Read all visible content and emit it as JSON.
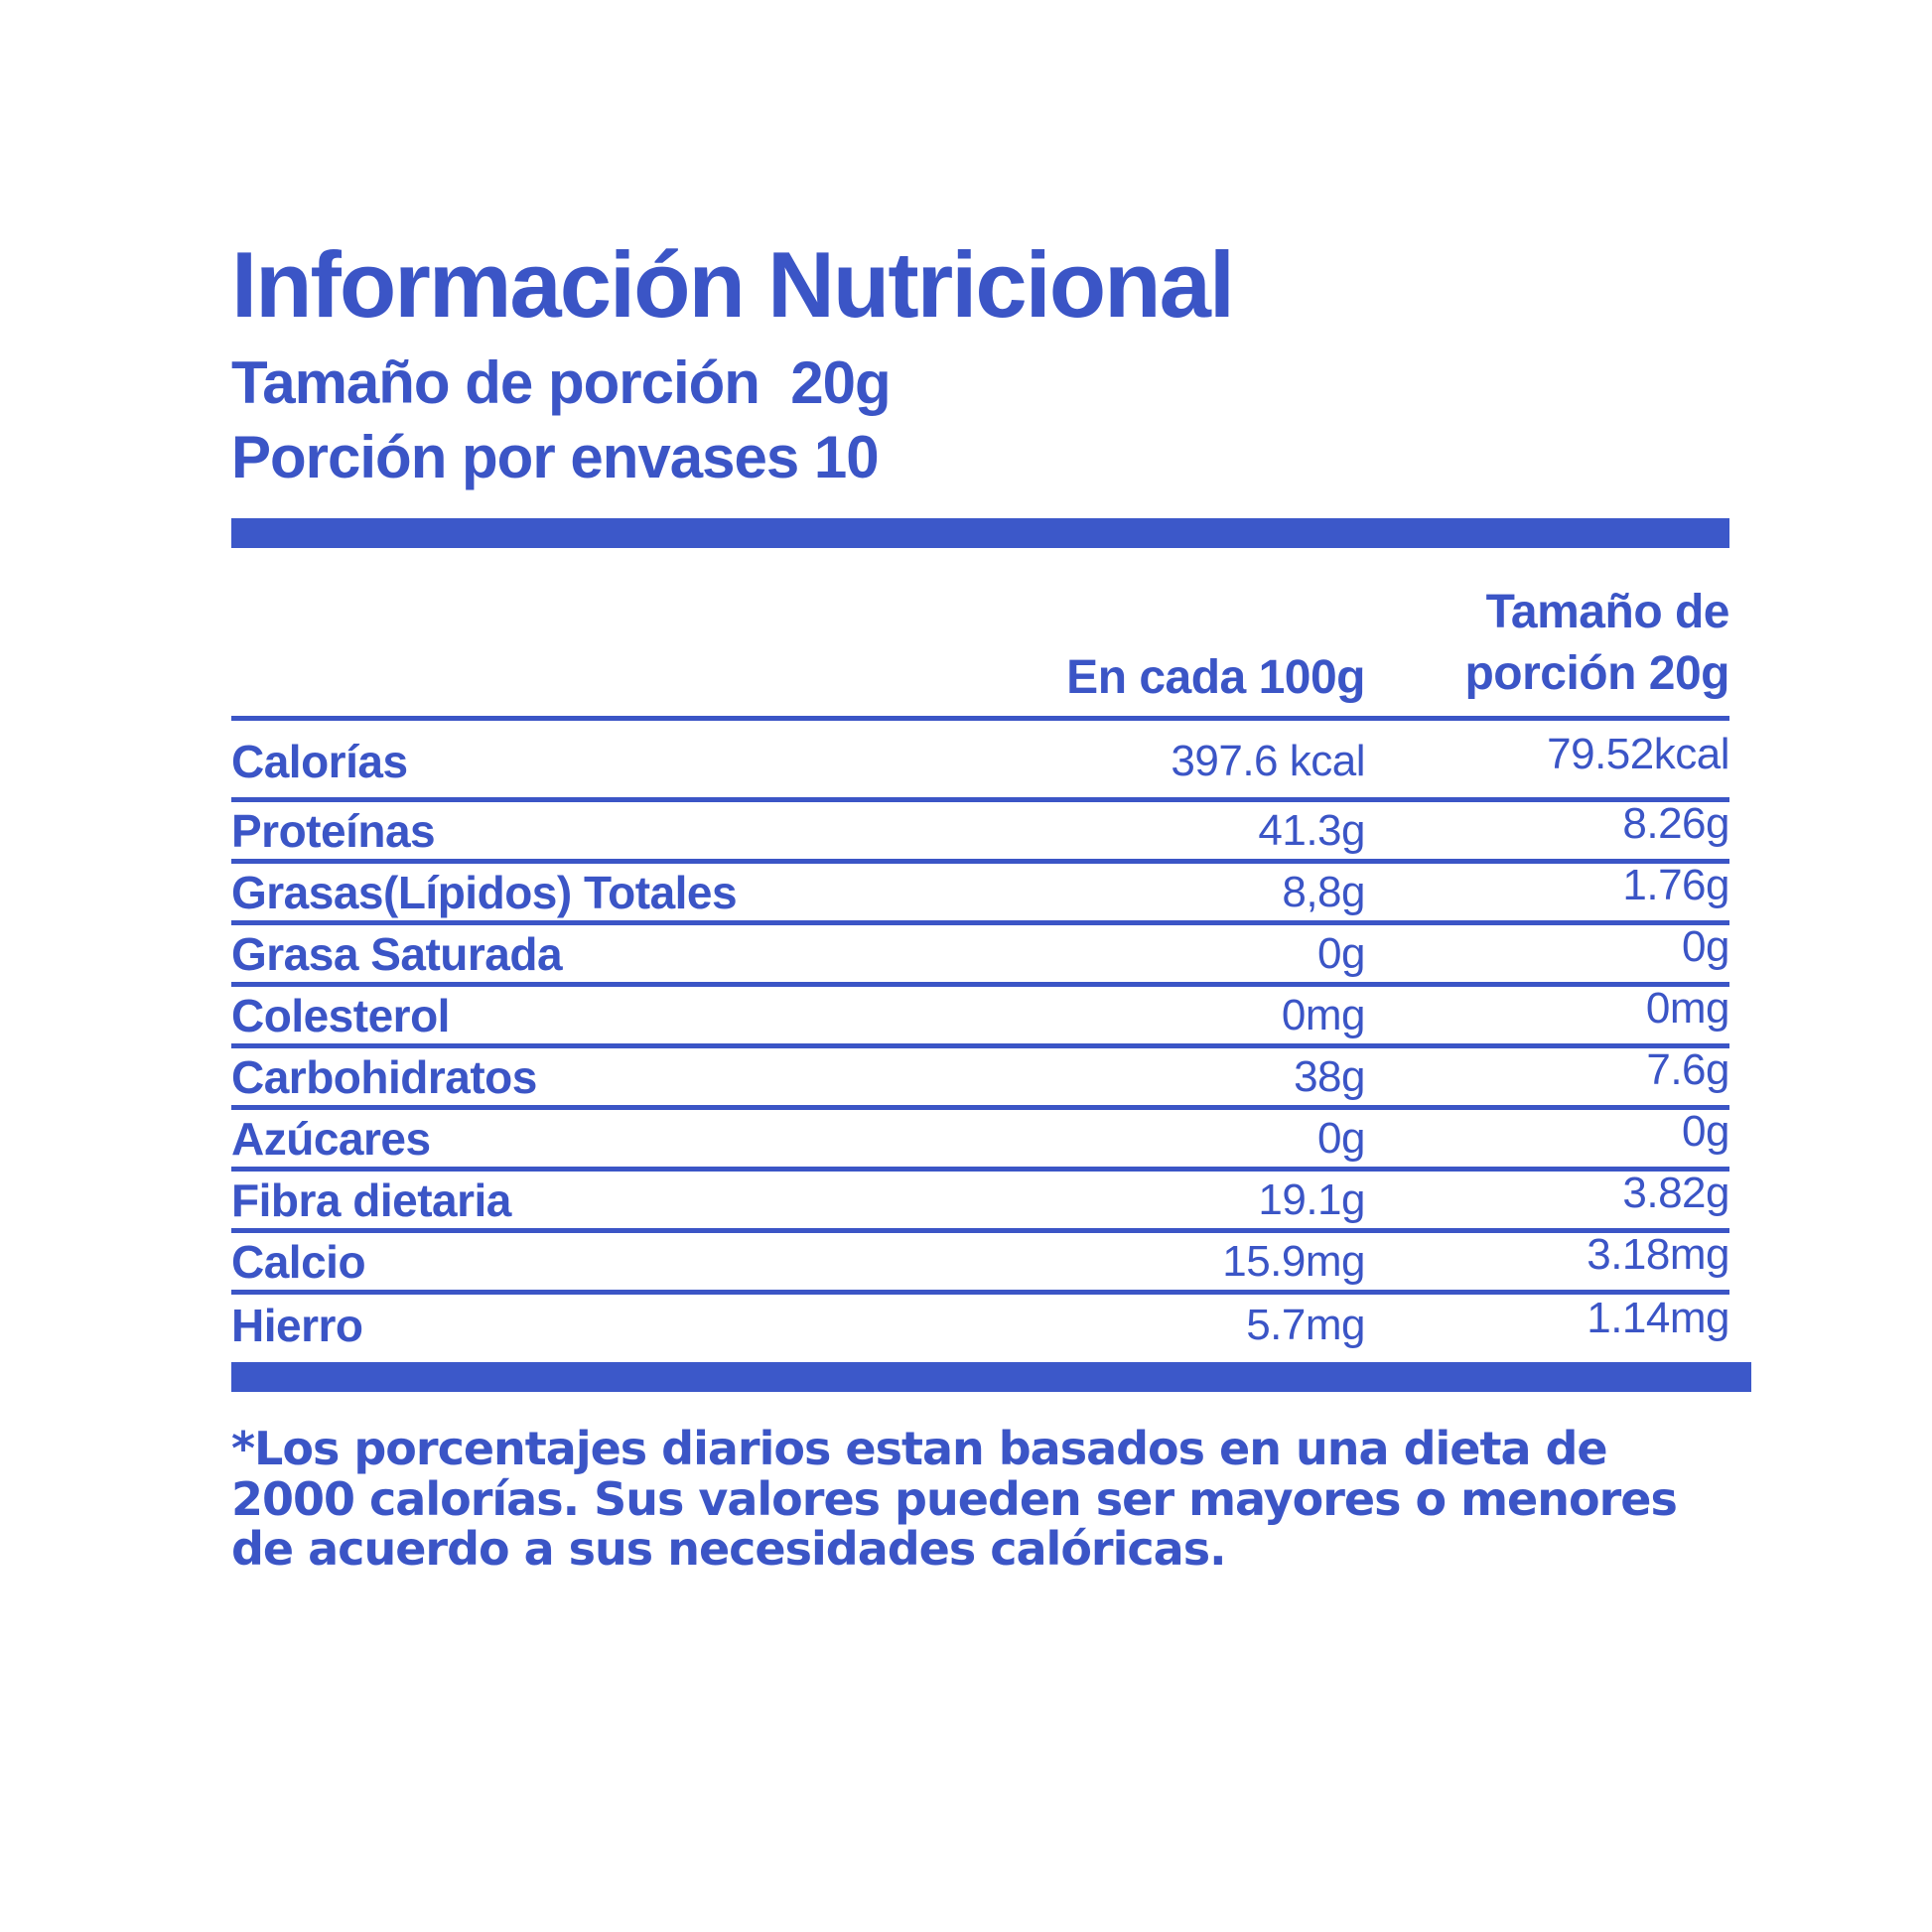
{
  "header": {
    "title": "Información Nutricional",
    "serving_size_line": "Tamaño de porción  20g",
    "servings_per_container_line": "Porción por envases 10"
  },
  "table": {
    "columns": {
      "per100": "En cada 100g",
      "perServing": "Tamaño de\nporción 20g"
    },
    "rows": [
      {
        "label": "Calorías",
        "per100": "397.6 kcal",
        "perServing": "79.52kcal"
      },
      {
        "label": "Proteínas",
        "per100": "41.3g",
        "perServing": "8.26g"
      },
      {
        "label": "Grasas(Lípidos) Totales",
        "per100": "8,8g",
        "perServing": "1.76g"
      },
      {
        "label": "Grasa Saturada",
        "per100": "0g",
        "perServing": "0g"
      },
      {
        "label": "Colesterol",
        "per100": "0mg",
        "perServing": "0mg"
      },
      {
        "label": "Carbohidratos",
        "per100": "38g",
        "perServing": "7.6g"
      },
      {
        "label": "Azúcares",
        "per100": "0g",
        "perServing": "0g"
      },
      {
        "label": "Fibra dietaria",
        "per100": "19.1g",
        "perServing": "3.82g"
      },
      {
        "label": "Calcio",
        "per100": "15.9mg",
        "perServing": "3.18mg"
      },
      {
        "label": "Hierro",
        "per100": "5.7mg",
        "perServing": "1.14mg"
      }
    ]
  },
  "footnote": {
    "text": "*Los porcentajes diarios estan basados en una dieta de\n2000 calorías. Sus valores pueden ser mayores o menores\nde acuerdo a sus necesidades calóricas."
  },
  "colors": {
    "accent_blue": "#3b55c6",
    "bar_blue": "#3c58c9",
    "background": "#ffffff"
  }
}
